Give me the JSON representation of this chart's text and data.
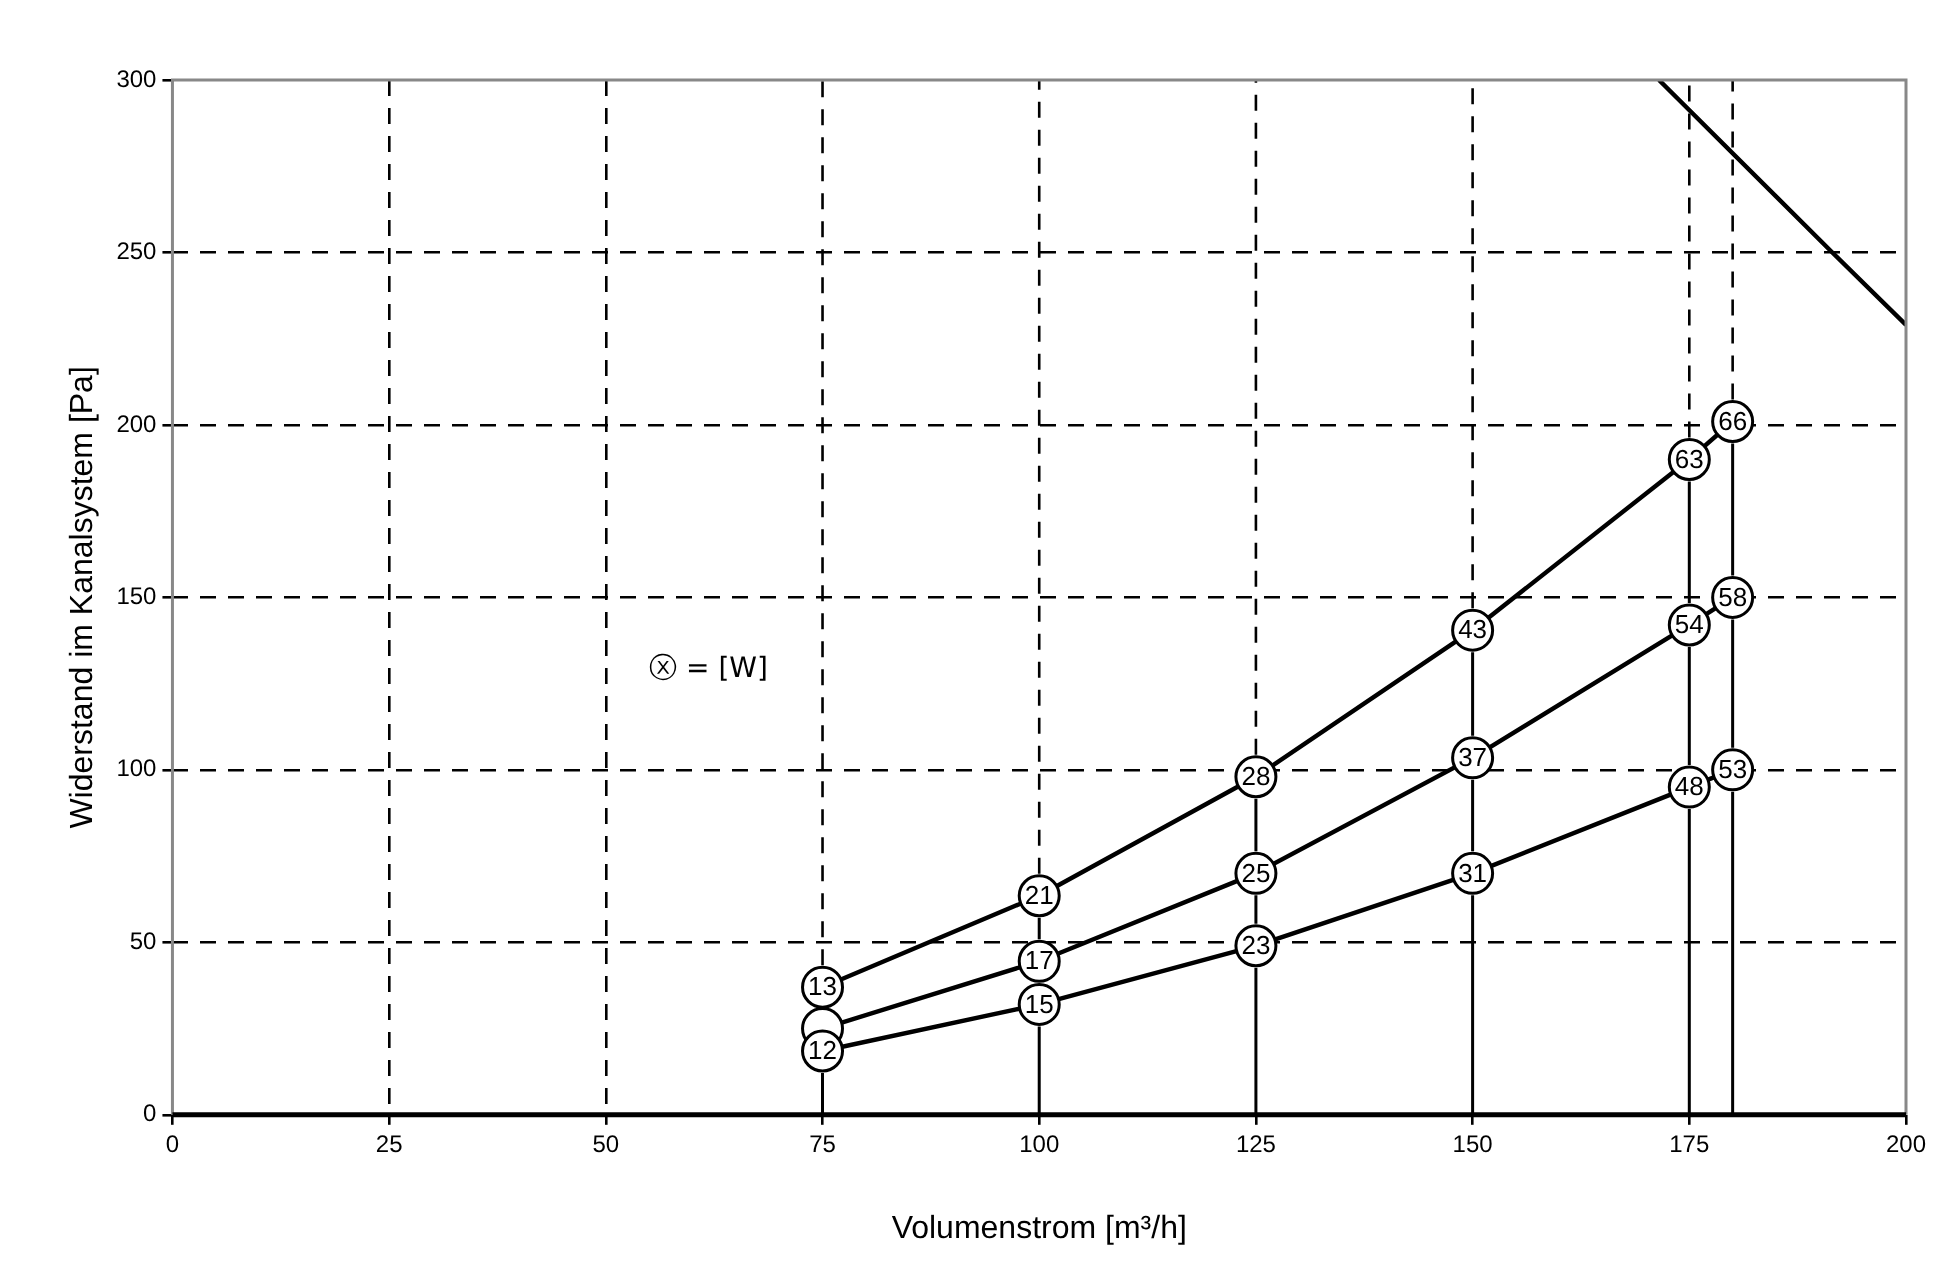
{
  "chart_data": {
    "type": "line",
    "xlabel": "Volumenstrom [m³/h]",
    "ylabel": "Widerstand im Kanalsystem [Pa]",
    "x": [
      75,
      100,
      125,
      150,
      175,
      180
    ],
    "series": [
      {
        "color": "#000000",
        "values": [
          37,
          63.5,
          98,
          140.5,
          190,
          201
        ]
      },
      {
        "color": "#000000",
        "values": [
          25,
          44.5,
          70,
          103.5,
          142,
          150
        ]
      },
      {
        "color": "#000000",
        "values": [
          18.5,
          32,
          49,
          70,
          95,
          100
        ]
      },
      {
        "type": "line",
        "color": "#000000",
        "marker": "none",
        "x": [
          171.5,
          191.5,
          200
        ],
        "values": [
          300,
          250,
          229
        ]
      }
    ],
    "xlim": [
      0,
      200
    ],
    "xticks": [
      0,
      25,
      50,
      75,
      100,
      125,
      150,
      175,
      200
    ],
    "ylim": [
      0,
      300
    ],
    "yticks": [
      0,
      50,
      100,
      150,
      200,
      250,
      300
    ],
    "ref_lines": [
      {
        "axis": "x",
        "value": 75
      },
      {
        "axis": "x",
        "value": 100
      },
      {
        "axis": "x",
        "value": 125
      },
      {
        "axis": "x",
        "value": 150
      },
      {
        "axis": "x",
        "value": 175
      },
      {
        "axis": "x",
        "value": 180
      }
    ],
    "annotations": [
      "ⓧ = [W]",
      {
        "text": "13",
        "x": 75,
        "y": 37
      },
      {
        "text": "21",
        "x": 100,
        "y": 63.5
      },
      {
        "text": "28",
        "x": 125,
        "y": 98
      },
      {
        "text": "43",
        "x": 150,
        "y": 140.5
      },
      {
        "text": "63",
        "x": 175,
        "y": 190
      },
      {
        "text": "66",
        "x": 180,
        "y": 201
      },
      {
        "text": "17",
        "x": 100,
        "y": 44.5
      },
      {
        "text": "25",
        "x": 125,
        "y": 70
      },
      {
        "text": "37",
        "x": 150,
        "y": 103.5
      },
      {
        "text": "54",
        "x": 175,
        "y": 142
      },
      {
        "text": "58",
        "x": 180,
        "y": 150
      },
      {
        "text": "12",
        "x": 75,
        "y": 18.5
      },
      {
        "text": "15",
        "x": 100,
        "y": 32
      },
      {
        "text": "23",
        "x": 125,
        "y": 49
      },
      {
        "text": "31",
        "x": 150,
        "y": 70
      },
      {
        "text": "48",
        "x": 175,
        "y": 95
      },
      {
        "text": "53",
        "x": 180,
        "y": 100
      }
    ],
    "grid": true,
    "legend": false,
    "marker": "circle",
    "line_style": "solid"
  }
}
